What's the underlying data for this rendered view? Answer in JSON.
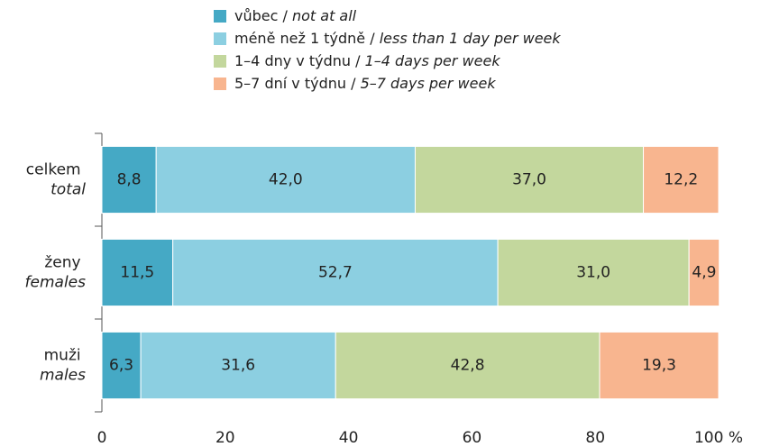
{
  "chart_data": {
    "type": "stacked-barh",
    "categories": [
      "celkem\ntotal",
      "ženy\nfemales",
      "muži\nmales"
    ],
    "series": [
      {
        "name": "vůbec / not at all",
        "color": "#45a9c5",
        "values": [
          8.8,
          11.5,
          6.3
        ],
        "value_labels": [
          "8,8",
          "11,5",
          "6,3"
        ]
      },
      {
        "name": "méně než 1 týdně / less than 1 day per week",
        "color": "#8ccfe1",
        "values": [
          42.0,
          52.7,
          31.6
        ],
        "value_labels": [
          "42,0",
          "52,7",
          "31,6"
        ]
      },
      {
        "name": "1–4 dny v týdnu / 1–4 days per week",
        "color": "#c3d79d",
        "values": [
          37.0,
          31.0,
          42.8
        ],
        "value_labels": [
          "37,0",
          "31,0",
          "42,8"
        ]
      },
      {
        "name": "5–7 dní v týdnu / 5–7 days per week",
        "color": "#f8b58f",
        "values": [
          12.2,
          4.9,
          19.3
        ],
        "value_labels": [
          "12,2",
          "4,9",
          "19,3"
        ]
      }
    ],
    "xlim": [
      0,
      100
    ],
    "xticks": [
      0,
      20,
      40,
      60,
      80,
      {
        "value": 100,
        "label": "100 %"
      }
    ]
  }
}
